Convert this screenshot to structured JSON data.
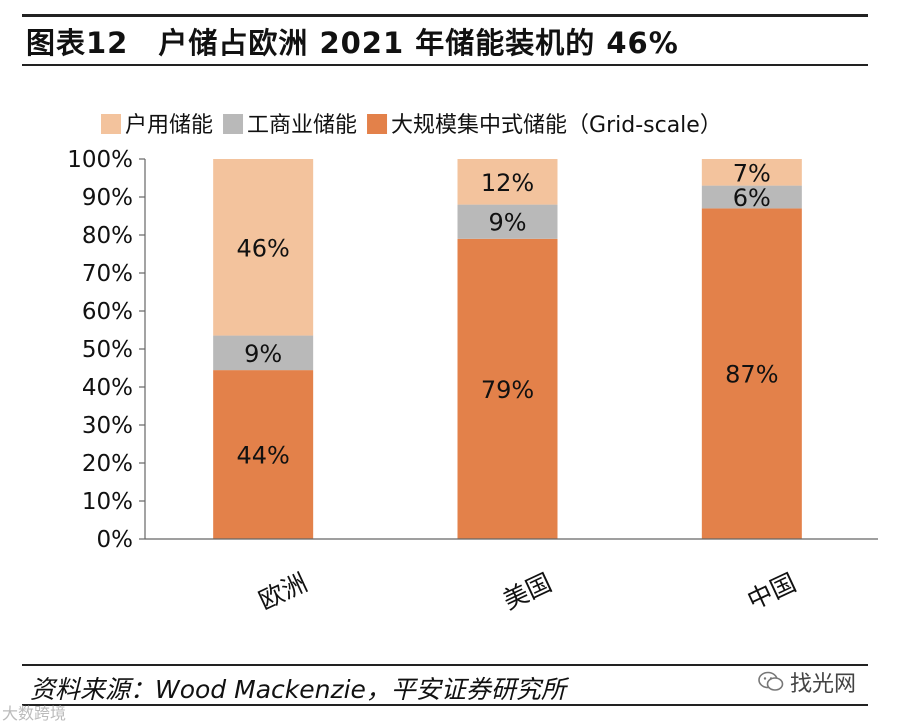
{
  "header": {
    "figure_label": "图表12",
    "title": "户储占欧洲 2021 年储能装机的 46%"
  },
  "footer": {
    "source": "资料来源：Wood Mackenzie，平安证券研究所"
  },
  "watermarks": {
    "wechat": "找光网",
    "corner": "大数跨境"
  },
  "colors": {
    "residential": "#F3C39D",
    "commercial": "#B9B9B9",
    "grid": "#E3814A",
    "text": "#111111"
  },
  "chart_data": {
    "type": "bar",
    "stacked": true,
    "percent": true,
    "categories": [
      "欧洲",
      "美国",
      "中国"
    ],
    "series": [
      {
        "name": "大规模集中式储能（Grid-scale）",
        "values": [
          44,
          79,
          87
        ],
        "labels": [
          "44%",
          "79%",
          "87%"
        ],
        "color_key": "grid"
      },
      {
        "name": "工商业储能",
        "values": [
          9,
          9,
          6
        ],
        "labels": [
          "9%",
          "9%",
          "6%"
        ],
        "color_key": "commercial"
      },
      {
        "name": "户用储能",
        "values": [
          46,
          12,
          7
        ],
        "labels": [
          "46%",
          "12%",
          "7%"
        ],
        "color_key": "residential"
      }
    ],
    "legend_order": [
      2,
      1,
      0
    ],
    "legend_position": "top",
    "ylim": [
      0,
      100
    ],
    "yticks": [
      "0%",
      "10%",
      "20%",
      "30%",
      "40%",
      "50%",
      "60%",
      "70%",
      "80%",
      "90%",
      "100%"
    ],
    "xlabel": "",
    "ylabel": "",
    "grid": false
  }
}
